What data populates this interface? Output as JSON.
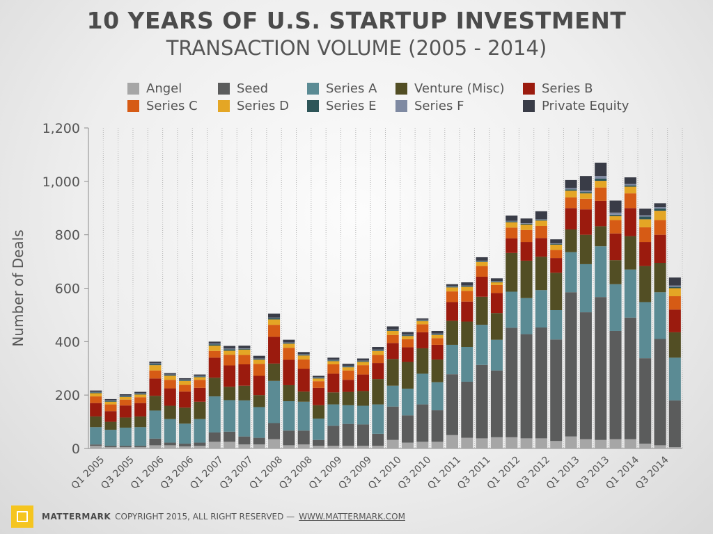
{
  "title": "10 YEARS OF U.S. STARTUP INVESTMENT",
  "subtitle": "TRANSACTION VOLUME (2005 - 2014)",
  "footer": {
    "brand": "MATTERMARK",
    "copyright": "COPYRIGHT 2015, ALL RIGHT RESERVED —",
    "link": "WWW.MATTERMARK.COM"
  },
  "chart_data": {
    "type": "bar",
    "stacked": true,
    "ylabel": "Number of Deals",
    "ylim": [
      0,
      1200
    ],
    "yticks": [
      0,
      200,
      400,
      600,
      800,
      1000,
      1200
    ],
    "ytick_labels": [
      "0",
      "200",
      "400",
      "600",
      "800",
      "1,000",
      "1,200"
    ],
    "grid": "vertical dotted",
    "legend_position": "top",
    "categories": [
      "Q1 2005",
      "Q2 2005",
      "Q3 2005",
      "Q4 2005",
      "Q1 2006",
      "Q2 2006",
      "Q3 2006",
      "Q4 2006",
      "Q1 2007",
      "Q2 2007",
      "Q3 2007",
      "Q4 2007",
      "Q1 2008",
      "Q2 2008",
      "Q3 2008",
      "Q4 2008",
      "Q1 2009",
      "Q2 2009",
      "Q3 2009",
      "Q4 2009",
      "Q1 2010",
      "Q2 2010",
      "Q3 2010",
      "Q4 2010",
      "Q1 2011",
      "Q2 2011",
      "Q3 2011",
      "Q4 2011",
      "Q1 2012",
      "Q2 2012",
      "Q3 2012",
      "Q4 2012",
      "Q1 2013",
      "Q2 2013",
      "Q3 2013",
      "Q4 2013",
      "Q1 2014",
      "Q2 2014",
      "Q3 2014",
      "Q4 2014"
    ],
    "xtick_labels": [
      "Q1 2005",
      "Q3 2005",
      "Q1 2006",
      "Q3 2006",
      "Q1 2007",
      "Q3 2007",
      "Q1 2008",
      "Q3 2008",
      "Q1 2009",
      "Q3 2009",
      "Q1 2010",
      "Q3 2010",
      "Q1 2011",
      "Q3 2011",
      "Q1 2012",
      "Q3 2012",
      "Q1 2013",
      "Q3 2013",
      "Q1 2014",
      "Q3 2014"
    ],
    "series": [
      {
        "name": "Angel",
        "color": "#a6a6a6",
        "values": [
          10,
          5,
          5,
          5,
          12,
          12,
          8,
          10,
          25,
          25,
          15,
          15,
          35,
          12,
          15,
          10,
          10,
          10,
          10,
          10,
          32,
          22,
          25,
          25,
          50,
          40,
          38,
          42,
          42,
          38,
          38,
          28,
          45,
          35,
          32,
          35,
          35,
          18,
          12,
          5
        ]
      },
      {
        "name": "Seed",
        "color": "#5b5c5c",
        "values": [
          5,
          5,
          5,
          5,
          25,
          10,
          10,
          12,
          35,
          38,
          30,
          25,
          60,
          55,
          52,
          22,
          75,
          82,
          80,
          45,
          125,
          102,
          140,
          118,
          228,
          210,
          275,
          250,
          410,
          390,
          415,
          380,
          540,
          475,
          535,
          405,
          455,
          320,
          398,
          175
        ]
      },
      {
        "name": "Series A",
        "color": "#5b8b94",
        "values": [
          65,
          60,
          68,
          70,
          105,
          88,
          75,
          88,
          135,
          118,
          135,
          115,
          158,
          110,
          108,
          80,
          80,
          70,
          70,
          110,
          78,
          100,
          115,
          105,
          110,
          130,
          150,
          115,
          135,
          135,
          140,
          110,
          150,
          180,
          190,
          175,
          180,
          210,
          175,
          160
        ]
      },
      {
        "name": "Venture (Misc)",
        "color": "#524e24",
        "values": [
          40,
          30,
          38,
          40,
          55,
          50,
          60,
          65,
          70,
          50,
          55,
          45,
          65,
          60,
          38,
          50,
          45,
          50,
          55,
          95,
          100,
          100,
          95,
          85,
          90,
          95,
          105,
          100,
          145,
          140,
          125,
          140,
          85,
          110,
          75,
          90,
          125,
          135,
          110,
          95
        ]
      },
      {
        "name": "Series B",
        "color": "#9b1b0e",
        "values": [
          50,
          40,
          45,
          50,
          65,
          65,
          60,
          52,
          75,
          80,
          80,
          72,
          100,
          95,
          85,
          65,
          70,
          45,
          62,
          60,
          60,
          55,
          60,
          55,
          70,
          75,
          75,
          75,
          55,
          70,
          70,
          55,
          80,
          95,
          95,
          100,
          105,
          90,
          105,
          85
        ]
      },
      {
        "name": "Series C",
        "color": "#d65b15",
        "values": [
          25,
          25,
          22,
          22,
          30,
          32,
          25,
          30,
          25,
          40,
          35,
          45,
          45,
          45,
          35,
          25,
          35,
          35,
          35,
          30,
          30,
          30,
          30,
          25,
          40,
          40,
          40,
          30,
          40,
          45,
          45,
          30,
          40,
          40,
          50,
          50,
          55,
          55,
          55,
          50
        ]
      },
      {
        "name": "Series D",
        "color": "#e4a625",
        "values": [
          12,
          10,
          10,
          10,
          20,
          15,
          15,
          10,
          20,
          15,
          20,
          15,
          20,
          15,
          15,
          10,
          12,
          12,
          12,
          15,
          15,
          12,
          12,
          12,
          15,
          15,
          15,
          10,
          20,
          20,
          20,
          20,
          25,
          20,
          25,
          15,
          25,
          30,
          35,
          30
        ]
      },
      {
        "name": "Series E",
        "color": "#2e5558",
        "values": [
          3,
          3,
          3,
          3,
          4,
          3,
          3,
          3,
          5,
          5,
          3,
          3,
          5,
          3,
          3,
          3,
          3,
          3,
          3,
          3,
          3,
          3,
          3,
          3,
          3,
          3,
          3,
          3,
          3,
          3,
          3,
          3,
          5,
          5,
          8,
          5,
          5,
          10,
          8,
          5
        ]
      },
      {
        "name": "Series F",
        "color": "#7f8aa2",
        "values": [
          2,
          2,
          2,
          2,
          3,
          2,
          2,
          2,
          3,
          3,
          2,
          2,
          2,
          2,
          2,
          2,
          2,
          2,
          2,
          2,
          2,
          2,
          2,
          2,
          2,
          2,
          2,
          2,
          2,
          2,
          2,
          2,
          5,
          5,
          10,
          8,
          5,
          5,
          5,
          5
        ]
      },
      {
        "name": "Private Equity",
        "color": "#393c47",
        "values": [
          5,
          5,
          5,
          5,
          6,
          5,
          5,
          5,
          7,
          10,
          10,
          10,
          15,
          10,
          8,
          5,
          8,
          8,
          8,
          10,
          12,
          10,
          5,
          10,
          7,
          12,
          13,
          10,
          20,
          18,
          30,
          15,
          30,
          55,
          50,
          45,
          25,
          25,
          15,
          30
        ]
      }
    ]
  }
}
